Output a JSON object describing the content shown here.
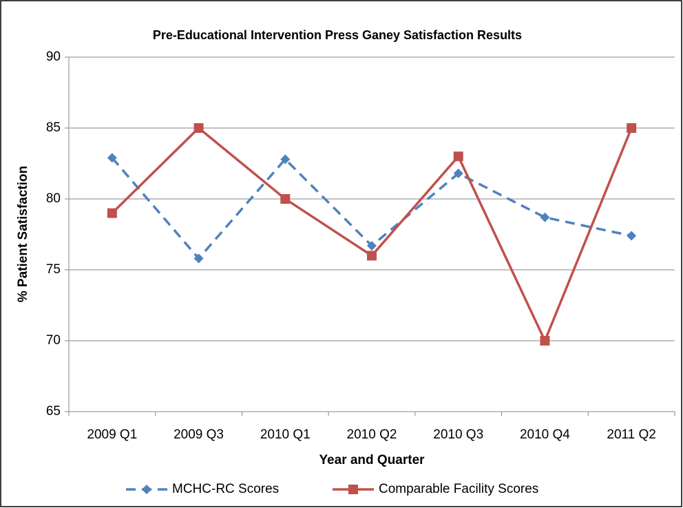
{
  "chart_data": {
    "type": "line",
    "title": "Pre-Educational Intervention Press Ganey Satisfaction Results",
    "x_label": "Year and Quarter",
    "y_label": "% Patient Satisfaction",
    "categories": [
      "2009 Q1",
      "2009 Q3",
      "2010 Q1",
      "2010 Q2",
      "2010 Q3",
      "2010 Q4",
      "2011 Q2"
    ],
    "series": [
      {
        "name": "MCHC-RC Scores",
        "color": "#4f81bd",
        "line_style": "dashed",
        "marker": "diamond",
        "values": [
          82.9,
          75.8,
          82.8,
          76.7,
          81.8,
          78.7,
          77.4
        ]
      },
      {
        "name": "Comparable Facility Scores",
        "color": "#c0504d",
        "line_style": "solid",
        "marker": "square",
        "values": [
          79,
          85,
          80,
          76,
          83,
          70,
          85
        ]
      }
    ],
    "ylim": [
      65,
      90
    ],
    "yticks": [
      65,
      70,
      75,
      80,
      85,
      90
    ],
    "grid": true,
    "legend": "bottom"
  }
}
